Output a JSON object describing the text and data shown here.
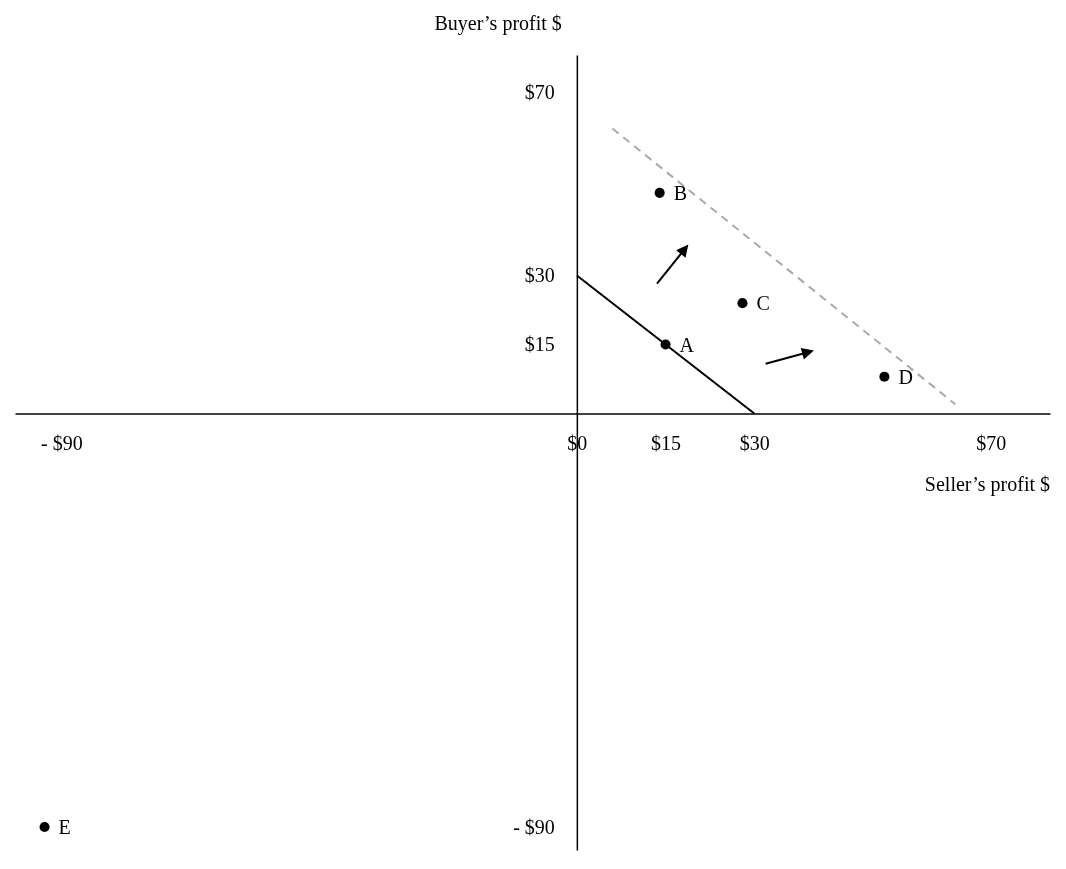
{
  "chart_data": {
    "type": "scatter",
    "xlabel": "Seller’s profit $",
    "ylabel": "Buyer’s profit $",
    "xlim": [
      -95,
      80
    ],
    "ylim": [
      -95,
      78
    ],
    "xticks": [
      {
        "value": -90,
        "label": "- $90"
      },
      {
        "value": 0,
        "label": "$0"
      },
      {
        "value": 15,
        "label": "$15"
      },
      {
        "value": 30,
        "label": "$30"
      },
      {
        "value": 70,
        "label": "$70"
      }
    ],
    "yticks": [
      {
        "value": -90,
        "label": "- $90"
      },
      {
        "value": 15,
        "label": "$15"
      },
      {
        "value": 30,
        "label": "$30"
      },
      {
        "value": 70,
        "label": "$70"
      }
    ],
    "grid": false,
    "marker": "circle",
    "series": [
      {
        "color": "#000000",
        "x": [
          15,
          14,
          28,
          52,
          -90
        ],
        "values": [
          15,
          48,
          24,
          8,
          -90
        ]
      },
      {
        "type": "line",
        "color": "#000000",
        "marker": "none",
        "line_style": "solid",
        "x": [
          0,
          30
        ],
        "values": [
          30,
          0
        ]
      },
      {
        "type": "line",
        "color": "#aaaaaa",
        "marker": "none",
        "line_style": "dashed",
        "x": [
          6,
          64
        ],
        "values": [
          62,
          2
        ]
      }
    ],
    "annotations": [
      {
        "text": "A",
        "x": 15,
        "y": 15
      },
      {
        "text": "B",
        "x": 14,
        "y": 48
      },
      {
        "text": "C",
        "x": 28,
        "y": 24
      },
      {
        "text": "D",
        "x": 52,
        "y": 8
      },
      {
        "text": "E",
        "x": -90,
        "y": -90
      }
    ]
  }
}
